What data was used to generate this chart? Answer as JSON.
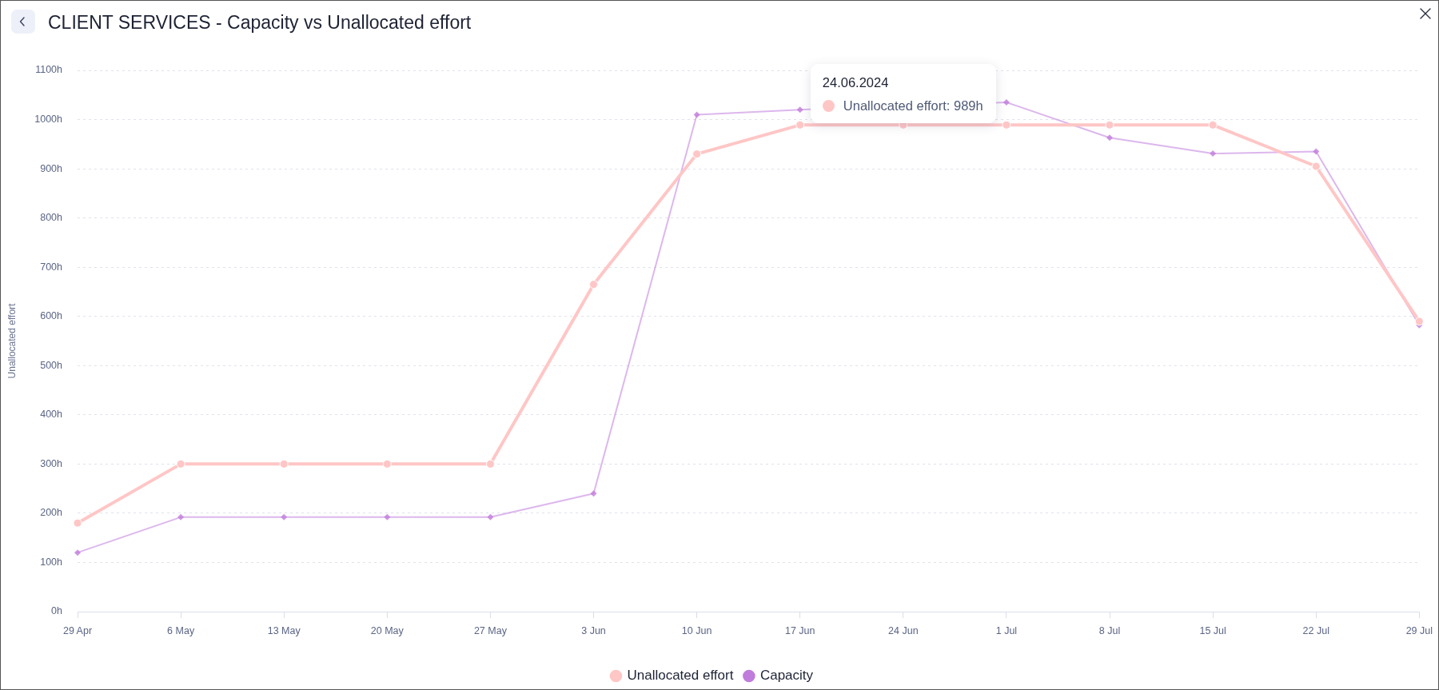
{
  "chart_data": {
    "type": "line",
    "title": "CLIENT SERVICES - Capacity vs Unallocated effort",
    "ylabel": "Unallocated effort",
    "categories": [
      "29 Apr",
      "6 May",
      "13 May",
      "20 May",
      "27 May",
      "3 Jun",
      "10 Jun",
      "17 Jun",
      "24 Jun",
      "1 Jul",
      "8 Jul",
      "15 Jul",
      "22 Jul",
      "29 Jul"
    ],
    "series": [
      {
        "name": "Unallocated effort",
        "color": "#ffc6c6",
        "marker": "circle",
        "values": [
          180,
          300,
          300,
          300,
          300,
          665,
          930,
          989,
          989,
          989,
          989,
          989,
          905,
          590
        ]
      },
      {
        "name": "Capacity",
        "color": "#c07cdc",
        "marker": "diamond",
        "values": [
          120,
          192,
          192,
          192,
          192,
          240,
          1010,
          1020,
          null,
          1035,
          963,
          931,
          935,
          582
        ]
      }
    ],
    "ylim": [
      0,
      1100
    ],
    "yticks": [
      {
        "value": 0,
        "label": "0h"
      },
      {
        "value": 100,
        "label": "100h"
      },
      {
        "value": 200,
        "label": "200h"
      },
      {
        "value": 300,
        "label": "300h"
      },
      {
        "value": 400,
        "label": "400h"
      },
      {
        "value": 500,
        "label": "500h"
      },
      {
        "value": 600,
        "label": "600h"
      },
      {
        "value": 700,
        "label": "700h"
      },
      {
        "value": 800,
        "label": "800h"
      },
      {
        "value": 900,
        "label": "900h"
      },
      {
        "value": 1000,
        "label": "1000h"
      },
      {
        "value": 1100,
        "label": "1100h"
      }
    ],
    "grid": "y",
    "legend": "bottom",
    "annotations": [
      "24.06.2024",
      {
        "text": "Unallocated effort: 989h",
        "x": "24 Jun",
        "y": 989
      }
    ]
  }
}
